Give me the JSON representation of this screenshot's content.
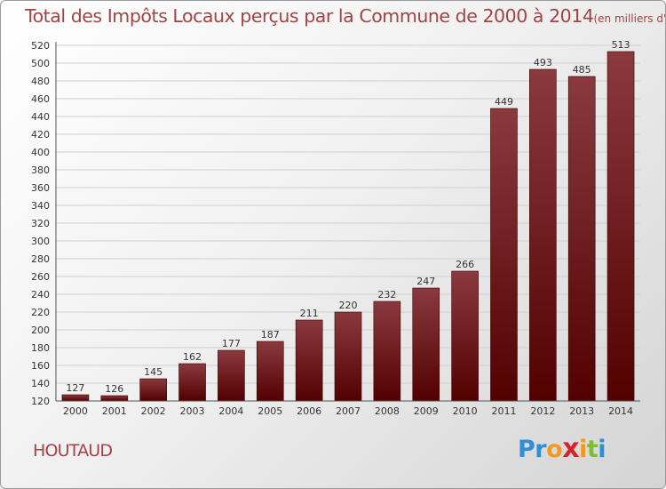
{
  "title": "Total des Impôts Locaux perçus par la Commune de 2000 à 2014",
  "title_unit": "(en milliers d'€)",
  "commune": "HOUTAUD",
  "logo": {
    "letters": [
      "P",
      "r",
      "o",
      "x",
      "i",
      "t",
      "i"
    ],
    "colors": [
      "#2e8fd4",
      "#2e8fd4",
      "#f29a1c",
      "#d9222a",
      "#f29a1c",
      "#7cbf2f",
      "#2e8fd4"
    ]
  },
  "colors": {
    "bar_top": "#8a3a3f",
    "bar_bottom": "#520000",
    "grid": "#cfcfcf",
    "text": "#333333",
    "title": "#a04444"
  },
  "chart_data": {
    "type": "bar",
    "title": "Total des Impôts Locaux perçus par la Commune de 2000 à 2014",
    "xlabel": "",
    "ylabel": "",
    "categories": [
      "2000",
      "2001",
      "2002",
      "2003",
      "2004",
      "2005",
      "2006",
      "2007",
      "2008",
      "2009",
      "2010",
      "2011",
      "2012",
      "2013",
      "2014"
    ],
    "values": [
      127,
      126,
      145,
      162,
      177,
      187,
      211,
      220,
      232,
      247,
      266,
      449,
      493,
      485,
      513
    ],
    "ylim": [
      120,
      520
    ],
    "ytick_step": 20,
    "grid": true
  }
}
